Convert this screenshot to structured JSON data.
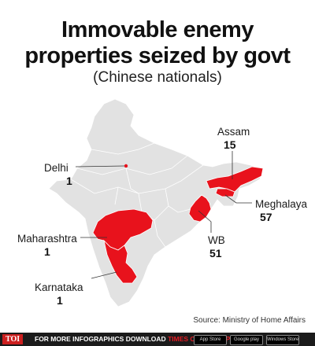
{
  "title_line1": "Immovable enemy",
  "title_line2": "properties seized by govt",
  "subtitle": "(Chinese nationals)",
  "regions": [
    {
      "name": "Delhi",
      "value": "1"
    },
    {
      "name": "Assam",
      "value": "15"
    },
    {
      "name": "Meghalaya",
      "value": "57"
    },
    {
      "name": "WB",
      "value": "51"
    },
    {
      "name": "Maharashtra",
      "value": "1"
    },
    {
      "name": "Karnataka",
      "value": "1"
    }
  ],
  "source": "Source: Ministry of Home Affairs",
  "footer": {
    "logo": "TOI",
    "message": "FOR MORE INFOGRAPHICS DOWNLOAD",
    "brand": "TIMES OF INDIA APP",
    "badges": [
      "App Store",
      "Google play",
      "Windows Store"
    ]
  },
  "colors": {
    "highlight": "#e8121c",
    "land": "#e2e2e2",
    "border": "#ffffff",
    "leader": "#333333"
  }
}
